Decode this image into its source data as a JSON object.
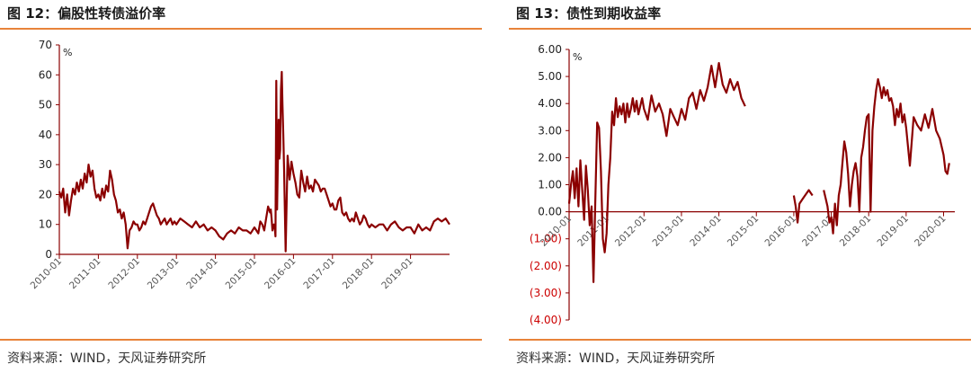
{
  "charts": [
    {
      "fig_title": "图 12：偏股性转债溢价率",
      "source": "资料来源：WIND，天风证券研究所"
    },
    {
      "fig_title": "图 13：债性到期收益率",
      "source": "资料来源：WIND，天风证券研究所"
    }
  ],
  "colors": {
    "series": "#8b0000",
    "axis": "#8b0000",
    "rule": "#e8833a",
    "negative_label": "#cc0000"
  },
  "chart_data": [
    {
      "type": "line",
      "title": "图 12：偏股性转债溢价率",
      "ylabel": "%",
      "xlabel": "",
      "ylim": [
        0,
        70
      ],
      "yticks": [
        0,
        10,
        20,
        30,
        40,
        50,
        60,
        70
      ],
      "ytick_labels": [
        "0",
        "10",
        "20",
        "30",
        "40",
        "50",
        "60",
        "70"
      ],
      "xlim": [
        2010.0,
        2020.0
      ],
      "xticks": [
        2010,
        2011,
        2012,
        2013,
        2014,
        2015,
        2016,
        2017,
        2018,
        2019
      ],
      "xtick_labels": [
        "2010-01",
        "2011-01",
        "2012-01",
        "2013-01",
        "2014-01",
        "2015-01",
        "2016-01",
        "2017-01",
        "2018-01",
        "2019-01"
      ],
      "grid": false,
      "series": [
        {
          "x": [
            2010.0,
            2010.05,
            2010.1,
            2010.15,
            2010.2,
            2010.25,
            2010.3,
            2010.35,
            2010.4,
            2010.45,
            2010.5,
            2010.55,
            2010.6,
            2010.65,
            2010.7,
            2010.75,
            2010.8,
            2010.85,
            2010.9,
            2010.95,
            2011.0,
            2011.05,
            2011.1,
            2011.15,
            2011.2,
            2011.25,
            2011.3,
            2011.35,
            2011.4,
            2011.45,
            2011.5,
            2011.55,
            2011.6,
            2011.65,
            2011.7,
            2011.75,
            2011.8,
            2011.85,
            2011.9,
            2011.95,
            2012.0,
            2012.05,
            2012.1,
            2012.15,
            2012.2,
            2012.25,
            2012.3,
            2012.35,
            2012.4,
            2012.45,
            2012.5,
            2012.55,
            2012.6,
            2012.65,
            2012.7,
            2012.75,
            2012.8,
            2012.85,
            2012.9,
            2012.95,
            2013.0,
            2013.1,
            2013.2,
            2013.3,
            2013.4,
            2013.5,
            2013.6,
            2013.7,
            2013.8,
            2013.9,
            2014.0,
            2014.1,
            2014.2,
            2014.3,
            2014.4,
            2014.5,
            2014.6,
            2014.7,
            2014.8,
            2014.9,
            2015.0,
            2015.05,
            2015.1,
            2015.15,
            2015.2,
            2015.25,
            2015.3,
            2015.35,
            2015.4,
            2015.42,
            2015.44,
            2015.46,
            2015.5,
            2015.52,
            2015.54,
            2015.56,
            2015.58,
            2015.6,
            2015.62,
            2015.64,
            2015.66,
            2015.68,
            2015.7,
            2015.72,
            2015.74,
            2015.76,
            2015.8,
            2015.85,
            2015.9,
            2015.95,
            2016.0,
            2016.05,
            2016.1,
            2016.15,
            2016.2,
            2016.25,
            2016.3,
            2016.35,
            2016.4,
            2016.45,
            2016.5,
            2016.55,
            2016.6,
            2016.65,
            2016.7,
            2016.75,
            2016.8,
            2016.85,
            2016.9,
            2016.95,
            2017.0,
            2017.05,
            2017.1,
            2017.15,
            2017.2,
            2017.25,
            2017.3,
            2017.35,
            2017.4,
            2017.45,
            2017.5,
            2017.55,
            2017.6,
            2017.65,
            2017.7,
            2017.75,
            2017.8,
            2017.85,
            2017.9,
            2017.95,
            2018.0,
            2018.1,
            2018.2,
            2018.3,
            2018.4,
            2018.5,
            2018.6,
            2018.7,
            2018.8,
            2018.9,
            2019.0,
            2019.1,
            2019.2,
            2019.3,
            2019.4,
            2019.5,
            2019.6,
            2019.7,
            2019.8,
            2019.9,
            2020.0
          ],
          "values": [
            21,
            19,
            22,
            14,
            20,
            13,
            18,
            22,
            20,
            24,
            21,
            25,
            22,
            27,
            24,
            30,
            26,
            28,
            22,
            19,
            20,
            18,
            22,
            19,
            23,
            21,
            28,
            25,
            20,
            18,
            14,
            15,
            12,
            14,
            10,
            2,
            8,
            9,
            11,
            10,
            10,
            8,
            9,
            11,
            10,
            12,
            14,
            16,
            17,
            15,
            13,
            12,
            10,
            11,
            12,
            10,
            11,
            12,
            10,
            11,
            10,
            12,
            11,
            10,
            9,
            11,
            9,
            10,
            8,
            9,
            8,
            6,
            5,
            7,
            8,
            7,
            9,
            8,
            8,
            7,
            9,
            8,
            7,
            11,
            10,
            8,
            12,
            16,
            14,
            15,
            12,
            8,
            10,
            9,
            6,
            58,
            15,
            30,
            45,
            32,
            35,
            55,
            61,
            50,
            40,
            28,
            1,
            33,
            25,
            31,
            27,
            24,
            20,
            19,
            28,
            24,
            21,
            26,
            22,
            23,
            21,
            25,
            24,
            23,
            21,
            22,
            22,
            20,
            18,
            16,
            17,
            15,
            15,
            18,
            19,
            14,
            13,
            14,
            12,
            11,
            12,
            11,
            14,
            12,
            10,
            11,
            13,
            12,
            10,
            9,
            10,
            9,
            10,
            10,
            8,
            10,
            11,
            9,
            8,
            9,
            9,
            7,
            10,
            8,
            9,
            8,
            11,
            12,
            11,
            12,
            10
          ]
        }
      ]
    },
    {
      "type": "line",
      "title": "图 13：债性到期收益率",
      "ylabel": "%",
      "xlabel": "",
      "ylim": [
        -4,
        6
      ],
      "yticks": [
        -4,
        -3,
        -2,
        -1,
        0,
        1,
        2,
        3,
        4,
        5,
        6
      ],
      "ytick_labels": [
        "(4.00)",
        "(3.00)",
        "(2.00)",
        "(1.00)",
        "0.00",
        "1.00",
        "2.00",
        "3.00",
        "4.00",
        "5.00",
        "6.00"
      ],
      "xlim": [
        2010.0,
        2020.3
      ],
      "xticks": [
        2010,
        2011,
        2012,
        2013,
        2014,
        2015,
        2016,
        2017,
        2018,
        2019,
        2020
      ],
      "xtick_labels": [
        "2010-01",
        "2011-01",
        "2012-01",
        "2013-01",
        "2014-01",
        "2015-01",
        "2016-01",
        "2017-01",
        "2018-01",
        "2019-01",
        "2020-01"
      ],
      "grid": false,
      "series": [
        {
          "segments": [
            {
              "x": [
                2010.0,
                2010.05,
                2010.1,
                2010.15,
                2010.2,
                2010.25,
                2010.3,
                2010.35,
                2010.4,
                2010.45,
                2010.5,
                2010.55,
                2010.6,
                2010.65,
                2010.7,
                2010.75,
                2010.8,
                2010.85,
                2010.9,
                2010.95,
                2011.0,
                2011.05,
                2011.1,
                2011.15,
                2011.2,
                2011.25,
                2011.3,
                2011.35,
                2011.4,
                2011.45,
                2011.5,
                2011.55,
                2011.6,
                2011.65,
                2011.7,
                2011.75,
                2011.8,
                2011.85,
                2011.9,
                2011.95,
                2012.0,
                2012.1,
                2012.2,
                2012.3,
                2012.4,
                2012.5,
                2012.6,
                2012.7,
                2012.8,
                2012.9,
                2013.0,
                2013.1,
                2013.2,
                2013.3,
                2013.4,
                2013.5,
                2013.6,
                2013.7,
                2013.8,
                2013.9,
                2014.0,
                2014.1,
                2014.2,
                2014.3,
                2014.4,
                2014.5,
                2014.6,
                2014.7
              ],
              "values": [
                0.3,
                1.0,
                1.5,
                0.5,
                1.6,
                0.2,
                1.9,
                0.8,
                -0.3,
                1.7,
                0.8,
                -0.5,
                0.2,
                -2.6,
                0.5,
                3.3,
                3.1,
                1.5,
                -1.0,
                -1.5,
                -0.8,
                1.0,
                2.0,
                3.7,
                3.2,
                4.2,
                3.5,
                3.9,
                3.6,
                4.0,
                3.3,
                4.0,
                3.5,
                3.8,
                4.2,
                3.7,
                4.1,
                3.6,
                3.9,
                4.2,
                3.8,
                3.4,
                4.3,
                3.7,
                4.0,
                3.6,
                2.8,
                3.8,
                3.5,
                3.2,
                3.8,
                3.4,
                4.2,
                4.4,
                3.8,
                4.5,
                4.1,
                4.6,
                5.4,
                4.6,
                5.5,
                4.7,
                4.4,
                4.9,
                4.5,
                4.8,
                4.2,
                3.9
              ]
            },
            {
              "x": [
                2016.0,
                2016.05,
                2016.1,
                2016.15,
                2016.2,
                2016.25,
                2016.3,
                2016.35,
                2016.4,
                2016.45,
                2016.5
              ],
              "values": [
                0.6,
                0.2,
                -0.4,
                0.3,
                0.4,
                0.5,
                0.6,
                0.7,
                0.8,
                0.7,
                0.6
              ]
            },
            {
              "x": [
                2016.8,
                2016.85,
                2016.9,
                2016.95,
                2017.0,
                2017.05,
                2017.1,
                2017.15,
                2017.2,
                2017.25,
                2017.3,
                2017.35,
                2017.4,
                2017.45,
                2017.5,
                2017.55,
                2017.6,
                2017.65,
                2017.7,
                2017.75,
                2017.8,
                2017.85,
                2017.9,
                2017.95,
                2018.0,
                2018.05,
                2018.1,
                2018.15,
                2018.2,
                2018.25,
                2018.3,
                2018.35,
                2018.4,
                2018.45,
                2018.5,
                2018.55,
                2018.6,
                2018.65,
                2018.7,
                2018.75,
                2018.8,
                2018.85,
                2018.9,
                2018.95,
                2019.0,
                2019.1,
                2019.2,
                2019.3,
                2019.4,
                2019.5,
                2019.6,
                2019.7,
                2019.8,
                2019.9,
                2020.0,
                2020.05,
                2020.1,
                2020.15
              ],
              "values": [
                0.8,
                0.5,
                0.2,
                -0.4,
                -0.2,
                -0.8,
                0.3,
                -0.5,
                0.6,
                1.0,
                1.8,
                2.6,
                2.2,
                1.4,
                0.2,
                1.0,
                1.5,
                1.8,
                1.3,
                0.0,
                2.0,
                2.4,
                3.0,
                3.5,
                3.6,
                0.0,
                3.0,
                3.9,
                4.5,
                4.9,
                4.6,
                4.2,
                4.6,
                4.3,
                4.5,
                4.1,
                4.2,
                3.9,
                3.2,
                3.8,
                3.5,
                4.0,
                3.3,
                3.6,
                3.1,
                1.7,
                3.5,
                3.2,
                3.0,
                3.6,
                3.1,
                3.8,
                3.0,
                2.7,
                2.1,
                1.5,
                1.4,
                1.8
              ]
            }
          ]
        }
      ]
    }
  ]
}
